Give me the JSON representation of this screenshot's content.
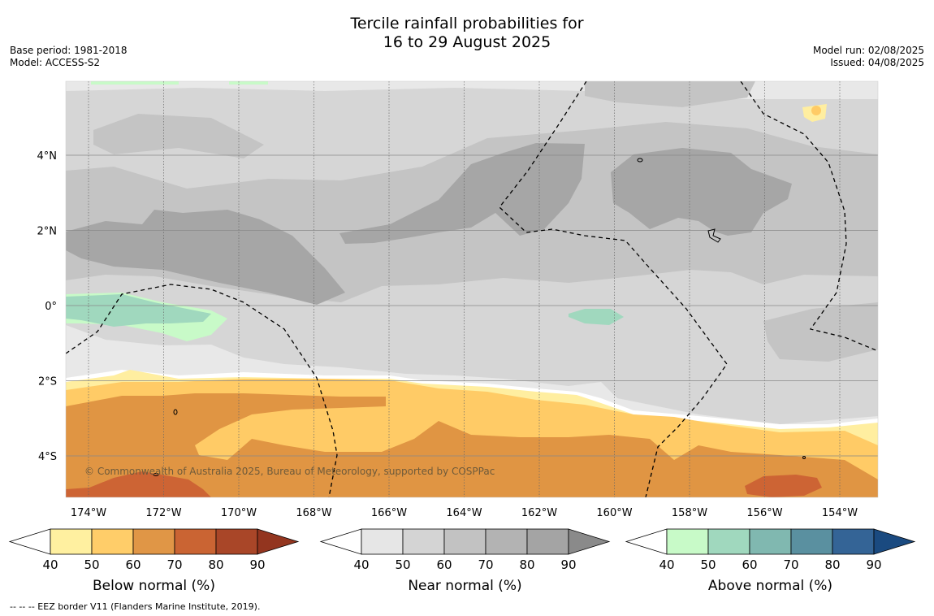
{
  "title": {
    "line1": "Tercile rainfall probabilities for",
    "line2": "16 to 29 August 2025"
  },
  "meta_left": {
    "base_period": "Base period: 1981-2018",
    "model": "Model: ACCESS-S2"
  },
  "meta_right": {
    "model_run": "Model run: 02/08/2025",
    "issued": "Issued: 04/08/2025"
  },
  "map": {
    "copyright": "© Commonwealth of Australia 2025, Bureau of Meteorology, supported by COSPPac",
    "lon_labels": [
      "174°W",
      "172°W",
      "170°W",
      "168°W",
      "166°W",
      "164°W",
      "162°W",
      "160°W",
      "158°W",
      "156°W",
      "154°W"
    ],
    "lat_labels": [
      "4°N",
      "2°N",
      "0°",
      "2°S",
      "4°S"
    ],
    "colors": {
      "near_40": "#e8e8e8",
      "near_50": "#d6d6d6",
      "near_60": "#c4c4c4",
      "near_70": "#b3b3b3",
      "near_80": "#a6a6a6",
      "below_40": "#ffeea0",
      "below_50": "#ffcb66",
      "below_60": "#e09543",
      "below_70": "#cd6434",
      "above_40": "#c8fac8",
      "above_50": "#a0d8be"
    }
  },
  "legends": [
    {
      "label": "Below normal (%)",
      "ticks": [
        "40",
        "50",
        "60",
        "70",
        "80",
        "90"
      ],
      "colors": [
        "#fff0a0",
        "#ffcd69",
        "#e09646",
        "#ca6433",
        "#a94628"
      ],
      "tip": "#93351f"
    },
    {
      "label": "Near normal (%)",
      "ticks": [
        "40",
        "50",
        "60",
        "70",
        "80",
        "90"
      ],
      "colors": [
        "#e6e6e6",
        "#d4d4d4",
        "#c2c2c2",
        "#b3b3b3",
        "#a4a4a4"
      ],
      "tip": "#8a8a8a"
    },
    {
      "label": "Above normal (%)",
      "ticks": [
        "40",
        "50",
        "60",
        "70",
        "80",
        "90"
      ],
      "colors": [
        "#c8fac8",
        "#a0d8be",
        "#80b8b0",
        "#5a90a0",
        "#346496"
      ],
      "tip": "#1a4a80"
    }
  ],
  "footer": "-- -- -- EEZ border V11 (Flanders Marine Institute, 2019)."
}
